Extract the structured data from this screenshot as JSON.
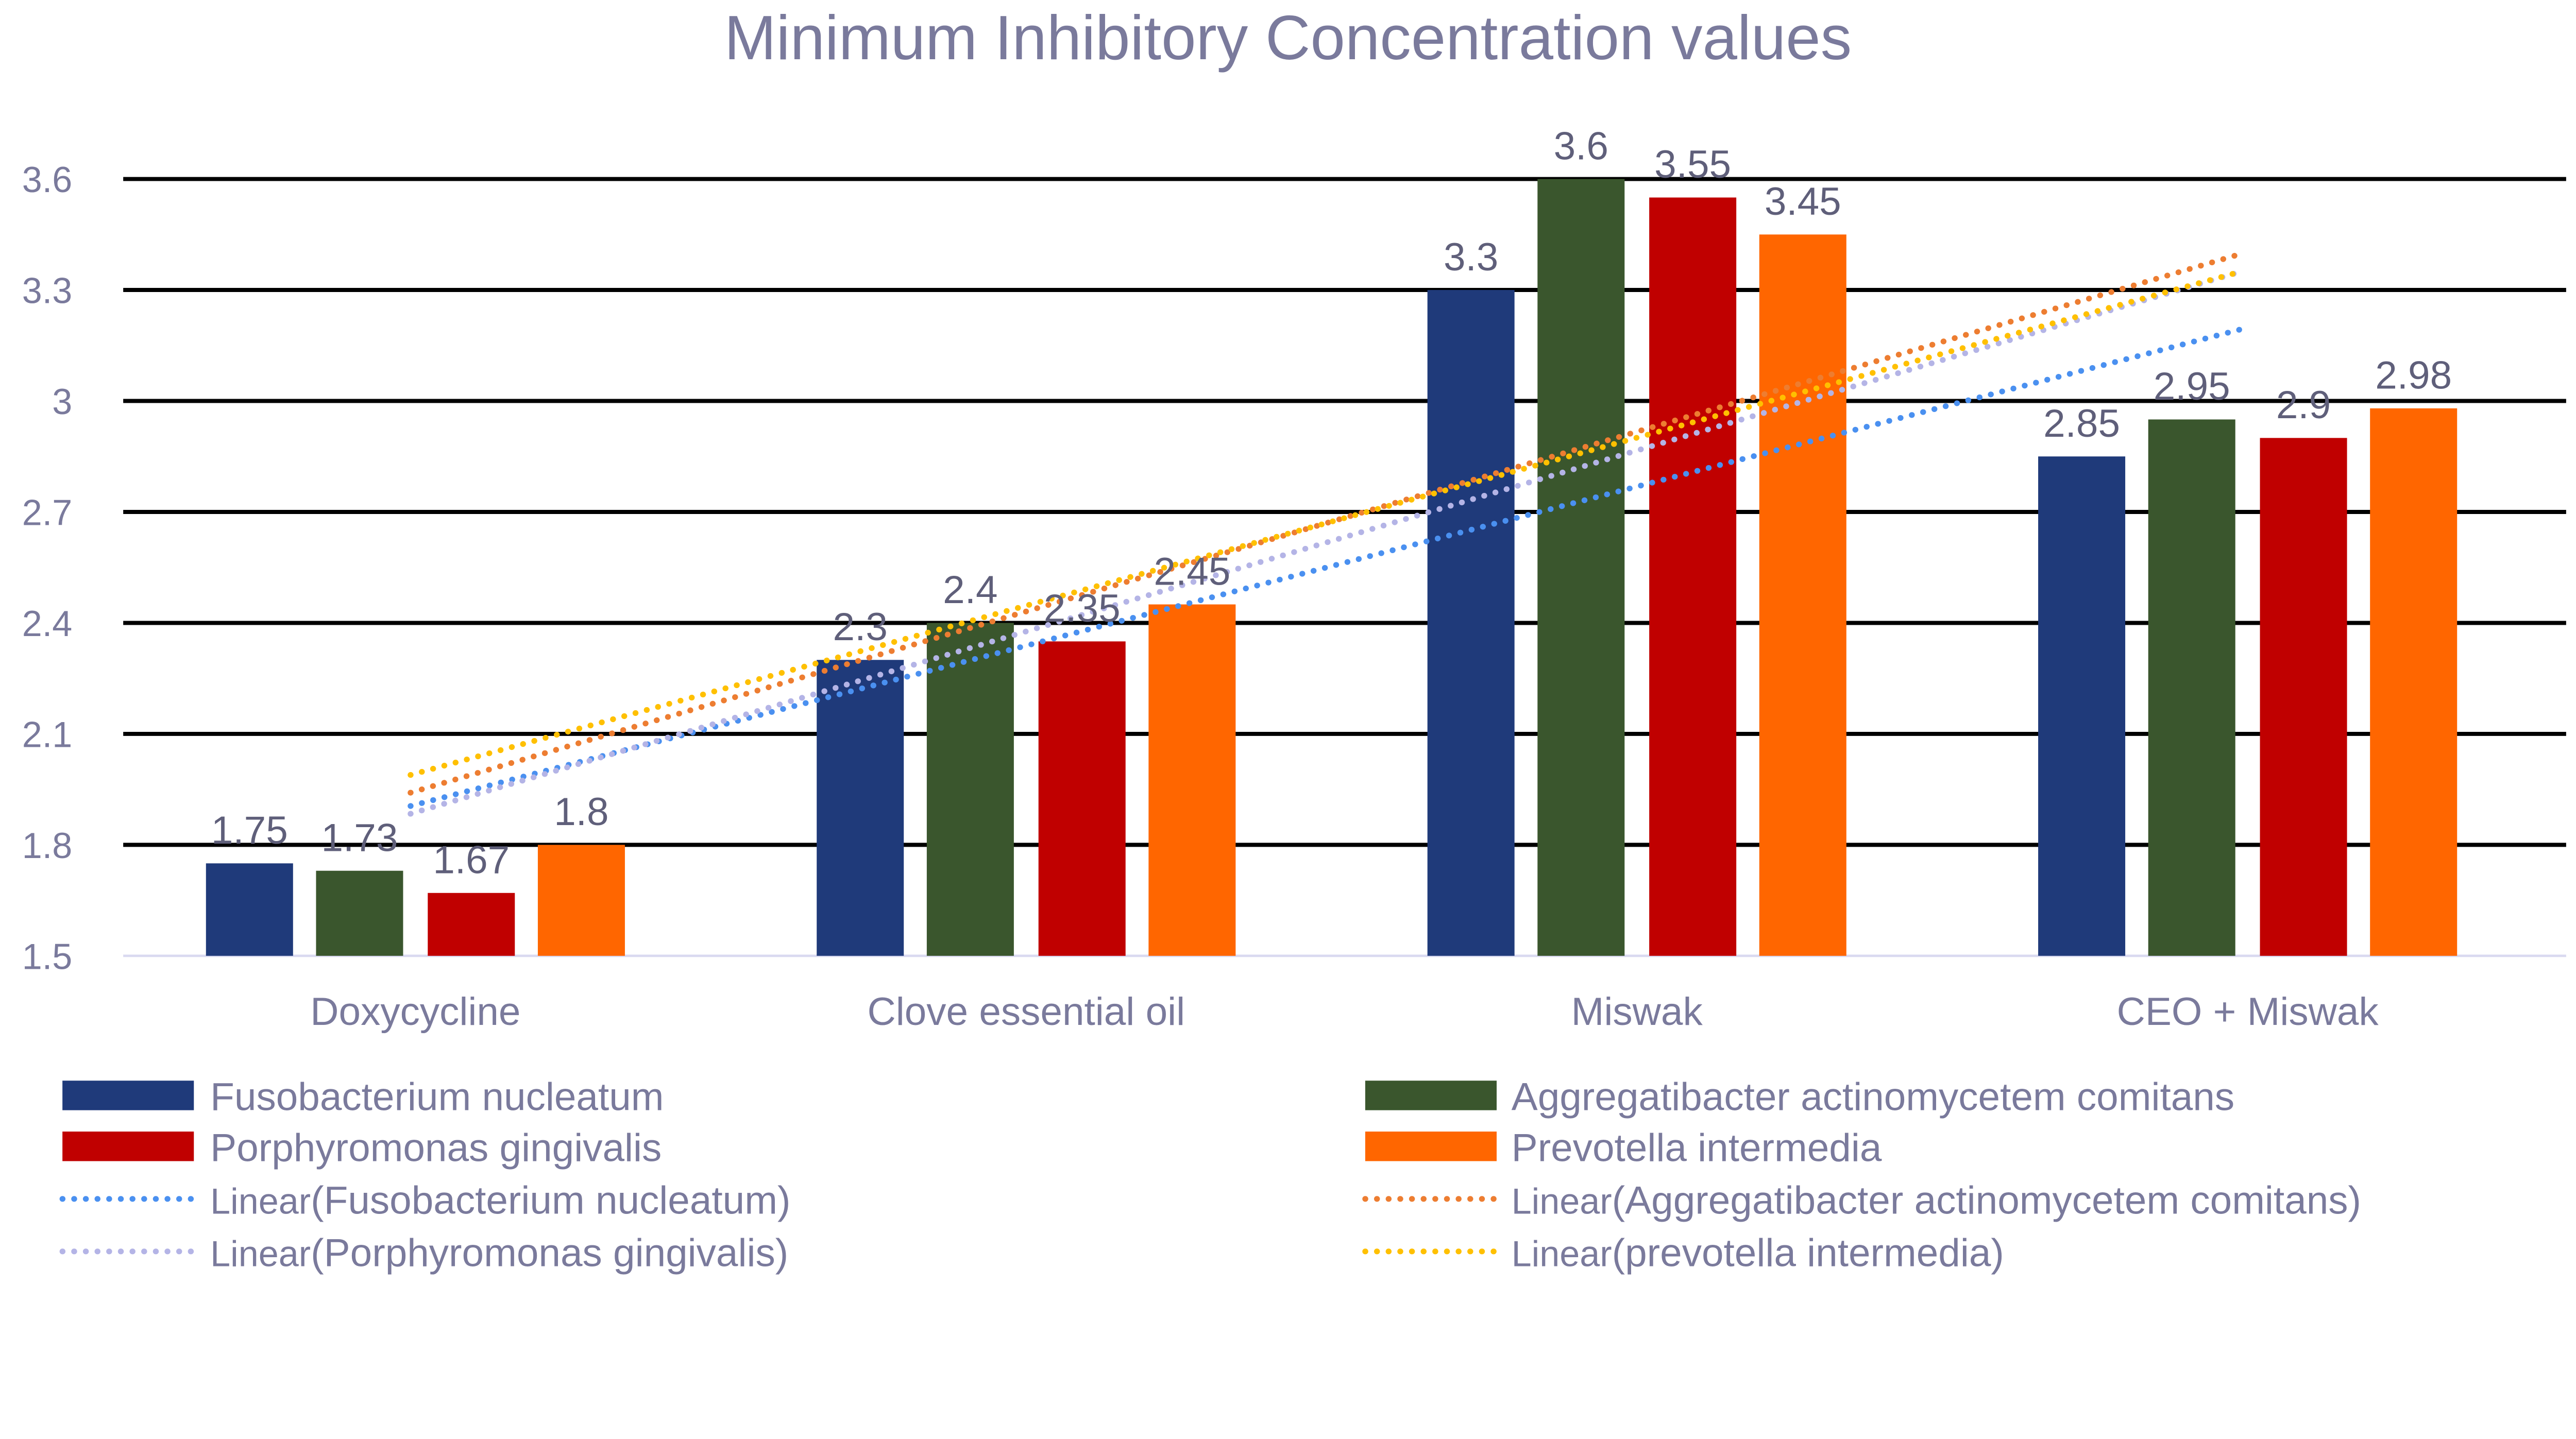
{
  "chart_data": {
    "type": "bar",
    "title": "Minimum Inhibitory Concentration values",
    "xlabel": "",
    "ylabel": "",
    "ylim": [
      1.5,
      3.6
    ],
    "yticks": [
      "1.5",
      "1.8",
      "2.1",
      "2.4",
      "2.7",
      "3",
      "3.3",
      "3.6"
    ],
    "grid": true,
    "legend_position": "bottom",
    "categories": [
      "Doxycycline",
      "Clove essential oil",
      "Miswak",
      "CEO + Miswak"
    ],
    "series": [
      {
        "name": "Fusobacterium nucleatum",
        "color": "#1f3a7a",
        "values": [
          1.75,
          2.3,
          3.3,
          2.85
        ],
        "labels": [
          "1.75",
          "2.3",
          "3.3",
          "2.85"
        ]
      },
      {
        "name": "Aggregatibacter actinomycetem comitans",
        "color": "#3a562d",
        "values": [
          1.73,
          2.4,
          3.6,
          2.95
        ],
        "labels": [
          "1.73",
          "2.4",
          "3.6",
          "2.95"
        ]
      },
      {
        "name": "Porphyromonas gingivalis",
        "color": "#c00000",
        "values": [
          1.67,
          2.35,
          3.55,
          2.9
        ],
        "labels": [
          "1.67",
          "2.35",
          "3.55",
          "2.9"
        ]
      },
      {
        "name": "Prevotella intermedia",
        "color": "#ff6600",
        "values": [
          1.8,
          2.45,
          3.45,
          2.98
        ],
        "labels": [
          "1.8",
          "2.45",
          "3.45",
          "2.98"
        ]
      }
    ],
    "trendlines": [
      {
        "name_prefix": "Linear",
        "name": "(Fusobacterium nucleatum)",
        "type": "linear",
        "series": 0,
        "color": "#4a90f0"
      },
      {
        "name_prefix": "Linear",
        "name": "(Aggregatibacter actinomycetem comitans)",
        "type": "linear",
        "series": 1,
        "color": "#ed7d31"
      },
      {
        "name_prefix": "Linear",
        "name": "(Porphyromonas gingivalis)",
        "type": "linear",
        "series": 2,
        "color": "#b4b4e6"
      },
      {
        "name_prefix": "Linear",
        "name": "(prevotella intermedia)",
        "type": "linear",
        "series": 3,
        "color": "#ffc000"
      }
    ]
  }
}
